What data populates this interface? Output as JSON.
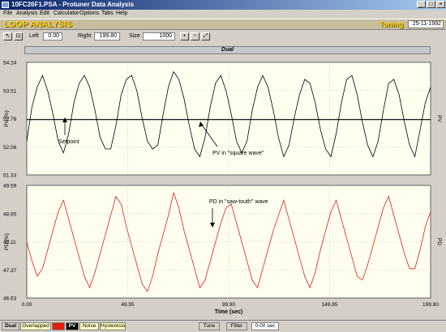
{
  "window": {
    "title": "10FC26F1.PSA - Protuner Data Analysis"
  },
  "menu": [
    "File",
    "Analysis",
    "Edit",
    "Calculator",
    "Options",
    "Tabs",
    "Help"
  ],
  "header": {
    "title": "LOOP ANALYSIS",
    "mode": "Tuning",
    "date": "25-11-1992"
  },
  "toolbar": {
    "left_label": "Left",
    "left_value": "0.00",
    "right_label": "Right",
    "right_value": "199.80",
    "size_label": "Size",
    "size_value": "1000"
  },
  "plot_title": "Dual",
  "colors": {
    "pv_trace": "#000000",
    "pd_trace": "#e02010",
    "plot_bg": "#fffff0",
    "header_bg": "#c7bd9d",
    "header_text": "#ffd200"
  },
  "chart_data": [
    {
      "type": "line",
      "title": "",
      "ylabel": "PV (%)",
      "ylabel_right": "PV",
      "ylim": [
        51.33,
        54.24
      ],
      "yticks": [
        "54.24",
        "53.51",
        "52.76",
        "52.06",
        "51.33"
      ],
      "xlim": [
        0,
        199.8
      ],
      "setpoint": 52.76,
      "grid": true,
      "series": [
        {
          "values": [
            52.2,
            53.1,
            53.6,
            53.9,
            53.5,
            52.9,
            52.2,
            51.9,
            52.4,
            53.2,
            53.7,
            53.9,
            53.6,
            53.0,
            52.3,
            52.0,
            52.0,
            52.6,
            53.4,
            53.8,
            53.9,
            53.5,
            52.8,
            52.2,
            52.0,
            52.1,
            52.9,
            53.6,
            54.0,
            53.8,
            53.3,
            52.6,
            52.0,
            51.8,
            52.3,
            53.1,
            53.7,
            53.9,
            53.5,
            52.9,
            52.2,
            51.9,
            52.2,
            53.0,
            53.6,
            53.9,
            53.6,
            53.0,
            52.3,
            51.8,
            52.1,
            52.8,
            53.4,
            53.8,
            53.7,
            53.2,
            52.5,
            52.0,
            51.8,
            52.4,
            53.2,
            53.8,
            53.9,
            53.4,
            52.7,
            52.1,
            51.8,
            52.2,
            53.0,
            53.7,
            53.8,
            53.4,
            52.7,
            52.1,
            51.8,
            52.5,
            53.2,
            53.6
          ]
        }
      ],
      "annotations": [
        "Setpoint",
        "PV in \"square wave\""
      ]
    },
    {
      "type": "line",
      "title": "",
      "ylabel": "PD (%)",
      "ylabel_right": "PD",
      "ylim": [
        46.63,
        49.59
      ],
      "yticks": [
        "49.59",
        "48.85",
        "48.11",
        "47.37",
        "46.63"
      ],
      "xlim": [
        0,
        199.8
      ],
      "xticks": [
        "0.00",
        "49.95",
        "99.90",
        "149.85",
        "199.80"
      ],
      "xlabel": "Time (sec)",
      "grid": true,
      "series": [
        {
          "values": [
            48.1,
            47.6,
            47.2,
            47.4,
            47.9,
            48.4,
            48.9,
            49.2,
            48.7,
            48.2,
            47.7,
            47.2,
            46.9,
            47.3,
            47.8,
            48.3,
            48.8,
            49.3,
            49.1,
            48.5,
            48.0,
            47.5,
            47.0,
            46.8,
            47.2,
            47.8,
            48.3,
            48.8,
            49.4,
            49.0,
            48.4,
            47.9,
            47.4,
            46.9,
            47.1,
            47.6,
            48.1,
            48.6,
            49.0,
            49.1,
            48.6,
            48.1,
            47.6,
            47.1,
            46.9,
            47.4,
            47.9,
            48.4,
            48.8,
            49.2,
            48.7,
            48.2,
            47.7,
            47.2,
            46.9,
            47.3,
            47.9,
            48.4,
            48.9,
            49.2,
            48.7,
            48.2,
            47.7,
            47.2,
            47.1,
            47.5,
            48.0,
            48.5,
            49.0,
            49.3,
            48.8,
            48.3,
            47.8,
            47.4,
            47.4,
            47.9,
            48.5,
            48.9
          ]
        }
      ],
      "annotations": [
        "PD in \"saw-touth\" wave"
      ]
    }
  ],
  "statusbar": {
    "tabs": [
      "Dual",
      "Overlapped",
      "PD",
      "PV",
      "Noise",
      "Hysteresis"
    ],
    "tune_label": "Tune",
    "filter_label": "Filter",
    "time_value": "0.00 sec"
  }
}
